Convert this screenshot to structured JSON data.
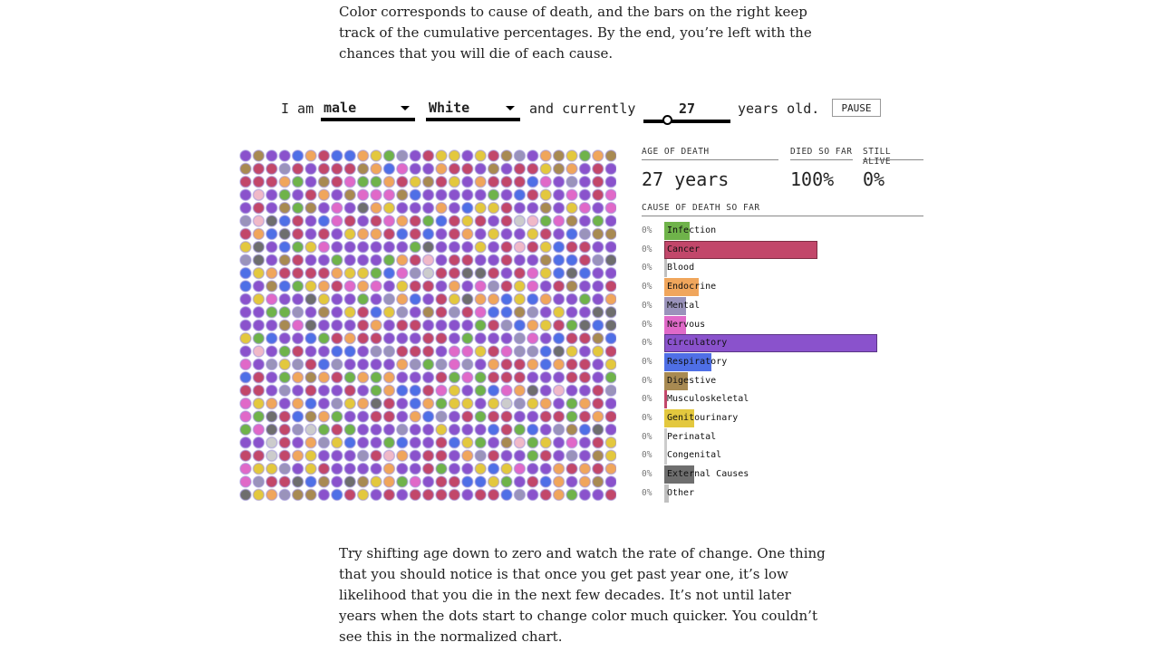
{
  "intro_text": "Color corresponds to cause of death, and the bars on the right keep track of the cumulative percentages. By the end, you’re left with the chances that you will die of each cause.",
  "controls": {
    "i_am": "I am",
    "sex": "male",
    "race": "White",
    "and_currently": "and currently",
    "age": "27",
    "years_old": "years old.",
    "pause_label": "PAUSE",
    "slider_fraction": 0.27
  },
  "stats": {
    "age_of_death_label": "AGE OF DEATH",
    "age_of_death_value": "27 years",
    "died_so_far_label": "DIED SO FAR",
    "died_so_far_value": "100%",
    "still_alive_label": "STILL ALIVE",
    "still_alive_value": "0%",
    "cause_heading": "CAUSE OF DEATH SO FAR"
  },
  "causes": [
    {
      "name": "Infection",
      "pct": "0%",
      "share": 0.12,
      "color": "#6fb34a"
    },
    {
      "name": "Cancer",
      "pct": "0%",
      "share": 0.72,
      "color": "#c2476a"
    },
    {
      "name": "Blood",
      "pct": "0%",
      "share": 0.01,
      "color": "#c0c0c0"
    },
    {
      "name": "Endocrine",
      "pct": "0%",
      "share": 0.16,
      "color": "#f0a65c"
    },
    {
      "name": "Mental",
      "pct": "0%",
      "share": 0.1,
      "color": "#9a93bb"
    },
    {
      "name": "Nervous",
      "pct": "0%",
      "share": 0.1,
      "color": "#e069c8"
    },
    {
      "name": "Circulatory",
      "pct": "0%",
      "share": 1.0,
      "color": "#8a52cc"
    },
    {
      "name": "Respiratory",
      "pct": "0%",
      "share": 0.22,
      "color": "#4f6fe6"
    },
    {
      "name": "Digestive",
      "pct": "0%",
      "share": 0.11,
      "color": "#a88a52"
    },
    {
      "name": "Musculoskeletal",
      "pct": "0%",
      "share": 0.01,
      "color": "#c2476a"
    },
    {
      "name": "Genitourinary",
      "pct": "0%",
      "share": 0.14,
      "color": "#e3c83e"
    },
    {
      "name": "Perinatal",
      "pct": "0%",
      "share": 0.0,
      "color": "#cccccc"
    },
    {
      "name": "Congenital",
      "pct": "0%",
      "share": 0.0,
      "color": "#cccccc"
    },
    {
      "name": "External Causes",
      "pct": "0%",
      "share": 0.14,
      "color": "#6e6e6e"
    },
    {
      "name": "Other",
      "pct": "0%",
      "share": 0.02,
      "color": "#c0c0c0"
    }
  ],
  "dot_grid": {
    "columns": 29,
    "rows": 27,
    "palette": [
      "#8a52cc",
      "#c2476a",
      "#f0a65c",
      "#6fb34a",
      "#e3c83e",
      "#4f6fe6",
      "#9a93bb",
      "#e069c8",
      "#a88a52",
      "#6e6e6e",
      "#cccccc",
      "#f0b9c8"
    ],
    "weights": [
      30,
      22,
      9,
      6,
      7,
      8,
      6,
      4,
      4,
      4,
      1,
      1
    ]
  },
  "outro_text": "Try shifting age down to zero and watch the rate of change. One thing that you should notice is that once you get past year one, it’s low likelihood that you die in the next few decades. It’s not until later years when the dots start to change color much quicker. You couldn’t see this in the normalized chart."
}
